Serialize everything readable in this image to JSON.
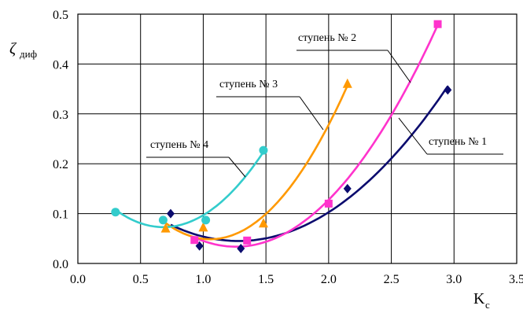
{
  "chart_data": {
    "type": "scatter",
    "title": "",
    "ylabel": "ζ",
    "ylabel_sub": "диф",
    "xlabel": "K",
    "xlabel_sub": "c",
    "xlim": [
      0,
      3.5
    ],
    "ylim": [
      0,
      0.5
    ],
    "xticks": [
      "0.0",
      "0.5",
      "1.0",
      "1.5",
      "2.0",
      "2.5",
      "3.0",
      "3.5"
    ],
    "yticks": [
      "0.0",
      "0.1",
      "0.2",
      "0.3",
      "0.4",
      "0.5"
    ],
    "grid": true,
    "series": [
      {
        "name": "ступень № 1",
        "color": "#0b0b6e",
        "marker": "diamond",
        "x": [
          0.74,
          0.97,
          1.3,
          2.15,
          2.95
        ],
        "y": [
          0.1,
          0.035,
          0.03,
          0.15,
          0.348
        ],
        "trend": [
          1.5,
          0.0,
          0.0
        ]
      },
      {
        "name": "ступень № 2",
        "color": "#ff33cc",
        "marker": "square",
        "x": [
          0.93,
          1.35,
          2.0,
          2.87
        ],
        "y": [
          0.047,
          0.046,
          0.12,
          0.48
        ],
        "trend": [
          2.3,
          0.0,
          0.0
        ]
      },
      {
        "name": "ступень № 3",
        "color": "#ff9900",
        "marker": "triangle",
        "x": [
          0.7,
          1.0,
          1.48,
          2.15
        ],
        "y": [
          0.07,
          0.072,
          0.08,
          0.36
        ],
        "trend": [
          3.0,
          0.0,
          0.0
        ]
      },
      {
        "name": "ступень № 4",
        "color": "#33cccc",
        "marker": "circle",
        "x": [
          0.3,
          0.68,
          1.02,
          1.48
        ],
        "y": [
          0.103,
          0.087,
          0.087,
          0.227
        ],
        "trend": [
          0.55,
          0.0,
          0.0
        ]
      }
    ]
  }
}
